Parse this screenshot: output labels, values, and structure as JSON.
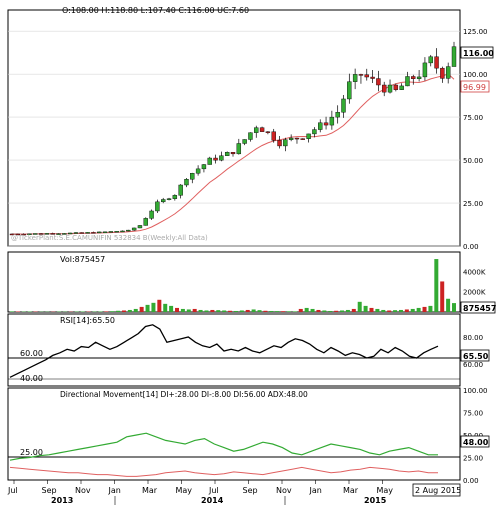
{
  "main_panel": {
    "ohlc_text": "O:108.00  H:118.80  L:107.40  C:116.00  UC:7.60",
    "watermark": "@TickerPlant:S.E.CAMUNIFIN 532834 B(Weekly:All Data)",
    "y_ticks": [
      "125.00",
      "100.00",
      "75.00",
      "50.00",
      "25.00",
      "0.00"
    ],
    "last_price_label": "116.00",
    "ma_label": "96.99",
    "colors": {
      "up": "#33aa33",
      "down": "#cc2222",
      "ma": "#e06060",
      "grid": "#d8d8d8"
    }
  },
  "volume_panel": {
    "title": "Vol:875457",
    "y_ticks": [
      "4000K",
      "2000K"
    ],
    "last_label": "875457"
  },
  "rsi_panel": {
    "title": "RSI[14]:65.50",
    "left_labels": [
      "60.00",
      "40.00"
    ],
    "y_ticks": [
      "80.00",
      "60.00"
    ],
    "last_label": "65.50"
  },
  "dmi_panel": {
    "title": "Directional Movement[14]  DI+:28.00  DI-:8.00  DI:56.00  ADX:48.00",
    "left_label": "25.00",
    "y_ticks": [
      "100.00",
      "75.00",
      "50.00",
      "25.00",
      "0.00"
    ],
    "last_label": "48.00",
    "colors": {
      "di_plus": "#33aa33",
      "di_minus": "#e06060"
    }
  },
  "x_axis": {
    "months": [
      "Jul",
      "Sep",
      "Nov",
      "Jan",
      "Mar",
      "May",
      "Jul",
      "Sep",
      "Nov",
      "Jan",
      "Mar",
      "May"
    ],
    "years": [
      "2013",
      "2014",
      "2015"
    ],
    "end_date": "2 Aug 2015"
  },
  "chart_data": {
    "type": "candlestick",
    "period": "weekly",
    "x_range": [
      "Jul 2013",
      "Aug 2015"
    ],
    "price_ylim": [
      0,
      135
    ],
    "price_path": [
      [
        0,
        7
      ],
      [
        10,
        7.5
      ],
      [
        15,
        8
      ],
      [
        20,
        9
      ],
      [
        22,
        12
      ],
      [
        25,
        25
      ],
      [
        28,
        30
      ],
      [
        30,
        40
      ],
      [
        32,
        45
      ],
      [
        34,
        50
      ],
      [
        36,
        52
      ],
      [
        38,
        55
      ],
      [
        40,
        62
      ],
      [
        42,
        70
      ],
      [
        44,
        66
      ],
      [
        46,
        60
      ],
      [
        48,
        62
      ],
      [
        50,
        64
      ],
      [
        52,
        68
      ],
      [
        54,
        72
      ],
      [
        56,
        78
      ],
      [
        58,
        94
      ],
      [
        60,
        100
      ],
      [
        62,
        96
      ],
      [
        64,
        92
      ],
      [
        66,
        90
      ],
      [
        68,
        96
      ],
      [
        70,
        100
      ],
      [
        72,
        108
      ],
      [
        74,
        100
      ],
      [
        75,
        106
      ],
      [
        76,
        116
      ]
    ],
    "moving_average_last": 96.99,
    "volume_values_k": [
      60,
      50,
      40,
      50,
      40,
      30,
      30,
      30,
      40,
      30,
      30,
      40,
      50,
      40,
      40,
      50,
      60,
      80,
      120,
      150,
      200,
      300,
      500,
      700,
      900,
      1200,
      800,
      600,
      400,
      300,
      250,
      300,
      200,
      150,
      200,
      180,
      150,
      120,
      100,
      150,
      200,
      250,
      180,
      120,
      100,
      90,
      80,
      70,
      60,
      300,
      400,
      300,
      200,
      150,
      100,
      120,
      150,
      200,
      300,
      1000,
      600,
      400,
      300,
      200,
      150,
      180,
      200,
      250,
      300,
      400,
      500,
      600,
      5200,
      3000,
      1300,
      875
    ],
    "volume_ylim_k": [
      0,
      5500
    ],
    "rsi_values": [
      30,
      34,
      38,
      42,
      46,
      50,
      55,
      58,
      62,
      60,
      65,
      64,
      70,
      66,
      62,
      65,
      70,
      75,
      80,
      88,
      90,
      85,
      70,
      72,
      74,
      76,
      70,
      66,
      64,
      68,
      60,
      62,
      60,
      64,
      60,
      58,
      62,
      66,
      64,
      70,
      74,
      72,
      68,
      62,
      58,
      64,
      60,
      55,
      58,
      56,
      52,
      54,
      62,
      58,
      64,
      60,
      54,
      52,
      58,
      62,
      65.5
    ],
    "rsi_ylim": [
      20,
      100
    ],
    "di_plus_values": [
      22,
      24,
      25,
      27,
      28,
      30,
      32,
      34,
      36,
      38,
      40,
      42,
      48,
      50,
      52,
      48,
      44,
      42,
      40,
      44,
      46,
      40,
      36,
      32,
      34,
      38,
      42,
      40,
      36,
      30,
      28,
      32,
      36,
      40,
      38,
      36,
      34,
      30,
      28,
      32,
      34,
      36,
      32,
      28,
      28
    ],
    "di_minus_values": [
      14,
      13,
      12,
      11,
      10,
      9,
      8,
      8,
      7,
      6,
      6,
      5,
      4,
      4,
      5,
      6,
      8,
      9,
      10,
      8,
      7,
      6,
      7,
      9,
      8,
      7,
      6,
      8,
      10,
      12,
      14,
      12,
      10,
      8,
      9,
      11,
      12,
      14,
      13,
      12,
      10,
      9,
      10,
      8,
      8
    ],
    "dmi_ylim": [
      0,
      100
    ],
    "latest": {
      "open": 108.0,
      "high": 118.8,
      "low": 107.4,
      "close": 116.0,
      "change": 7.6,
      "volume": 875457,
      "rsi": 65.5,
      "di_plus": 28.0,
      "di_minus": 8.0,
      "dx": 56.0,
      "adx": 48.0
    }
  }
}
